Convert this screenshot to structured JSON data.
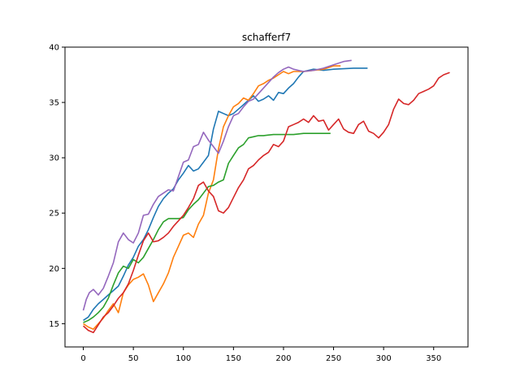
{
  "chart_data": {
    "type": "line",
    "title": "schafferf7",
    "xlabel": "",
    "ylabel": "",
    "xlim": [
      -18.3,
      384.3
    ],
    "ylim": [
      12.9,
      40
    ],
    "xticks": [
      0,
      50,
      100,
      150,
      200,
      250,
      300,
      350
    ],
    "yticks": [
      15,
      20,
      25,
      30,
      35,
      40
    ],
    "grid": false,
    "legend": "none",
    "series": [
      {
        "color": "#1f77b4",
        "points": [
          [
            0,
            15.3
          ],
          [
            5,
            15.6
          ],
          [
            10,
            16.3
          ],
          [
            15,
            16.8
          ],
          [
            20,
            17.2
          ],
          [
            25,
            17.6
          ],
          [
            30,
            18.0
          ],
          [
            35,
            18.4
          ],
          [
            40,
            19.3
          ],
          [
            45,
            20.3
          ],
          [
            50,
            21.0
          ],
          [
            55,
            22.0
          ],
          [
            60,
            22.6
          ],
          [
            65,
            23.5
          ],
          [
            70,
            24.6
          ],
          [
            75,
            25.6
          ],
          [
            80,
            26.3
          ],
          [
            85,
            26.8
          ],
          [
            90,
            27.2
          ],
          [
            95,
            28.0
          ],
          [
            100,
            28.6
          ],
          [
            105,
            29.3
          ],
          [
            110,
            28.8
          ],
          [
            115,
            29.0
          ],
          [
            120,
            29.6
          ],
          [
            125,
            30.2
          ],
          [
            130,
            32.6
          ],
          [
            135,
            34.2
          ],
          [
            140,
            34.0
          ],
          [
            145,
            33.8
          ],
          [
            150,
            34.0
          ],
          [
            155,
            34.4
          ],
          [
            160,
            34.8
          ],
          [
            165,
            35.2
          ],
          [
            170,
            35.6
          ],
          [
            175,
            35.1
          ],
          [
            180,
            35.3
          ],
          [
            185,
            35.6
          ],
          [
            190,
            35.2
          ],
          [
            195,
            35.9
          ],
          [
            200,
            35.8
          ],
          [
            205,
            36.3
          ],
          [
            210,
            36.7
          ],
          [
            215,
            37.3
          ],
          [
            220,
            37.8
          ],
          [
            230,
            38.0
          ],
          [
            240,
            37.9
          ],
          [
            250,
            38.0
          ],
          [
            260,
            38.05
          ],
          [
            270,
            38.1
          ],
          [
            284,
            38.1
          ]
        ]
      },
      {
        "color": "#ff7f0e",
        "points": [
          [
            0,
            15.0
          ],
          [
            5,
            14.7
          ],
          [
            10,
            14.5
          ],
          [
            15,
            15.0
          ],
          [
            20,
            15.5
          ],
          [
            25,
            16.2
          ],
          [
            30,
            16.8
          ],
          [
            35,
            16.0
          ],
          [
            40,
            17.8
          ],
          [
            45,
            18.5
          ],
          [
            50,
            19.0
          ],
          [
            55,
            19.2
          ],
          [
            60,
            19.5
          ],
          [
            65,
            18.5
          ],
          [
            70,
            17.0
          ],
          [
            75,
            17.8
          ],
          [
            80,
            18.6
          ],
          [
            85,
            19.6
          ],
          [
            90,
            21.0
          ],
          [
            95,
            22.0
          ],
          [
            100,
            23.0
          ],
          [
            105,
            23.2
          ],
          [
            110,
            22.8
          ],
          [
            115,
            24.0
          ],
          [
            120,
            24.8
          ],
          [
            125,
            26.8
          ],
          [
            130,
            28.0
          ],
          [
            135,
            30.8
          ],
          [
            140,
            32.8
          ],
          [
            145,
            33.8
          ],
          [
            150,
            34.6
          ],
          [
            155,
            34.9
          ],
          [
            160,
            35.4
          ],
          [
            165,
            35.2
          ],
          [
            170,
            35.8
          ],
          [
            175,
            36.5
          ],
          [
            180,
            36.7
          ],
          [
            185,
            37.0
          ],
          [
            190,
            37.2
          ],
          [
            195,
            37.5
          ],
          [
            200,
            37.8
          ],
          [
            205,
            37.6
          ],
          [
            210,
            37.8
          ],
          [
            220,
            37.8
          ],
          [
            230,
            37.9
          ],
          [
            240,
            38.0
          ],
          [
            250,
            38.3
          ],
          [
            257,
            38.3
          ]
        ]
      },
      {
        "color": "#2ca02c",
        "points": [
          [
            0,
            15.1
          ],
          [
            5,
            15.3
          ],
          [
            10,
            15.6
          ],
          [
            15,
            16.0
          ],
          [
            20,
            16.5
          ],
          [
            25,
            17.3
          ],
          [
            30,
            18.5
          ],
          [
            35,
            19.6
          ],
          [
            40,
            20.2
          ],
          [
            45,
            20.0
          ],
          [
            50,
            20.8
          ],
          [
            55,
            20.5
          ],
          [
            60,
            21.0
          ],
          [
            65,
            21.8
          ],
          [
            70,
            22.6
          ],
          [
            75,
            23.5
          ],
          [
            80,
            24.2
          ],
          [
            85,
            24.5
          ],
          [
            90,
            24.5
          ],
          [
            95,
            24.5
          ],
          [
            100,
            24.6
          ],
          [
            105,
            25.3
          ],
          [
            110,
            25.8
          ],
          [
            115,
            26.2
          ],
          [
            120,
            26.8
          ],
          [
            125,
            27.4
          ],
          [
            130,
            27.5
          ],
          [
            135,
            27.8
          ],
          [
            140,
            28.0
          ],
          [
            145,
            29.5
          ],
          [
            150,
            30.2
          ],
          [
            155,
            30.9
          ],
          [
            160,
            31.2
          ],
          [
            165,
            31.8
          ],
          [
            170,
            31.9
          ],
          [
            175,
            32.0
          ],
          [
            180,
            32.0
          ],
          [
            185,
            32.05
          ],
          [
            190,
            32.1
          ],
          [
            200,
            32.1
          ],
          [
            210,
            32.1
          ],
          [
            220,
            32.2
          ],
          [
            230,
            32.2
          ],
          [
            247,
            32.2
          ]
        ]
      },
      {
        "color": "#d62728",
        "points": [
          [
            0,
            14.8
          ],
          [
            5,
            14.4
          ],
          [
            10,
            14.2
          ],
          [
            15,
            14.9
          ],
          [
            20,
            15.6
          ],
          [
            25,
            16.0
          ],
          [
            30,
            16.6
          ],
          [
            35,
            17.3
          ],
          [
            40,
            17.8
          ],
          [
            45,
            18.6
          ],
          [
            50,
            19.8
          ],
          [
            55,
            21.2
          ],
          [
            60,
            22.5
          ],
          [
            65,
            23.2
          ],
          [
            70,
            22.4
          ],
          [
            75,
            22.5
          ],
          [
            80,
            22.8
          ],
          [
            85,
            23.2
          ],
          [
            90,
            23.8
          ],
          [
            95,
            24.3
          ],
          [
            100,
            24.8
          ],
          [
            105,
            25.5
          ],
          [
            110,
            26.3
          ],
          [
            115,
            27.5
          ],
          [
            120,
            27.8
          ],
          [
            125,
            27.0
          ],
          [
            130,
            26.5
          ],
          [
            135,
            25.2
          ],
          [
            140,
            25.0
          ],
          [
            145,
            25.5
          ],
          [
            150,
            26.4
          ],
          [
            155,
            27.3
          ],
          [
            160,
            28.0
          ],
          [
            165,
            29.0
          ],
          [
            170,
            29.3
          ],
          [
            175,
            29.8
          ],
          [
            180,
            30.2
          ],
          [
            185,
            30.5
          ],
          [
            190,
            31.2
          ],
          [
            195,
            31.0
          ],
          [
            200,
            31.5
          ],
          [
            205,
            32.8
          ],
          [
            210,
            33.0
          ],
          [
            215,
            33.2
          ],
          [
            220,
            33.5
          ],
          [
            225,
            33.2
          ],
          [
            230,
            33.8
          ],
          [
            235,
            33.3
          ],
          [
            240,
            33.4
          ],
          [
            245,
            32.5
          ],
          [
            250,
            33.0
          ],
          [
            255,
            33.5
          ],
          [
            260,
            32.6
          ],
          [
            265,
            32.3
          ],
          [
            270,
            32.2
          ],
          [
            275,
            33.0
          ],
          [
            280,
            33.3
          ],
          [
            285,
            32.4
          ],
          [
            290,
            32.2
          ],
          [
            295,
            31.8
          ],
          [
            300,
            32.3
          ],
          [
            305,
            33.0
          ],
          [
            310,
            34.4
          ],
          [
            315,
            35.3
          ],
          [
            320,
            34.9
          ],
          [
            325,
            34.8
          ],
          [
            330,
            35.2
          ],
          [
            335,
            35.8
          ],
          [
            340,
            36.0
          ],
          [
            345,
            36.2
          ],
          [
            350,
            36.5
          ],
          [
            355,
            37.2
          ],
          [
            360,
            37.5
          ],
          [
            366,
            37.7
          ]
        ]
      },
      {
        "color": "#9467bd",
        "points": [
          [
            0,
            16.2
          ],
          [
            3,
            17.2
          ],
          [
            6,
            17.8
          ],
          [
            10,
            18.1
          ],
          [
            15,
            17.6
          ],
          [
            20,
            18.2
          ],
          [
            25,
            19.3
          ],
          [
            30,
            20.5
          ],
          [
            35,
            22.4
          ],
          [
            40,
            23.2
          ],
          [
            45,
            22.6
          ],
          [
            50,
            22.3
          ],
          [
            55,
            23.2
          ],
          [
            60,
            24.8
          ],
          [
            65,
            24.9
          ],
          [
            70,
            25.8
          ],
          [
            75,
            26.5
          ],
          [
            80,
            26.8
          ],
          [
            85,
            27.1
          ],
          [
            90,
            27.0
          ],
          [
            95,
            28.3
          ],
          [
            100,
            29.6
          ],
          [
            105,
            29.8
          ],
          [
            110,
            31.0
          ],
          [
            115,
            31.2
          ],
          [
            120,
            32.3
          ],
          [
            125,
            31.6
          ],
          [
            130,
            31.0
          ],
          [
            135,
            30.4
          ],
          [
            140,
            31.5
          ],
          [
            145,
            32.8
          ],
          [
            150,
            33.8
          ],
          [
            155,
            34.0
          ],
          [
            160,
            34.6
          ],
          [
            165,
            35.1
          ],
          [
            170,
            35.3
          ],
          [
            175,
            35.8
          ],
          [
            180,
            36.3
          ],
          [
            185,
            36.8
          ],
          [
            190,
            37.3
          ],
          [
            195,
            37.7
          ],
          [
            200,
            38.0
          ],
          [
            205,
            38.2
          ],
          [
            210,
            38.0
          ],
          [
            215,
            37.9
          ],
          [
            220,
            37.8
          ],
          [
            230,
            37.9
          ],
          [
            240,
            38.1
          ],
          [
            250,
            38.4
          ],
          [
            260,
            38.7
          ],
          [
            268,
            38.8
          ]
        ]
      }
    ]
  }
}
